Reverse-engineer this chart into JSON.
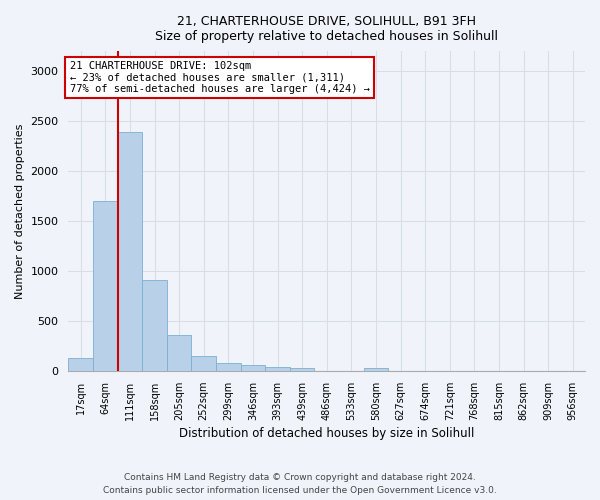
{
  "title1": "21, CHARTERHOUSE DRIVE, SOLIHULL, B91 3FH",
  "title2": "Size of property relative to detached houses in Solihull",
  "xlabel": "Distribution of detached houses by size in Solihull",
  "ylabel": "Number of detached properties",
  "categories": [
    "17sqm",
    "64sqm",
    "111sqm",
    "158sqm",
    "205sqm",
    "252sqm",
    "299sqm",
    "346sqm",
    "393sqm",
    "439sqm",
    "486sqm",
    "533sqm",
    "580sqm",
    "627sqm",
    "674sqm",
    "721sqm",
    "768sqm",
    "815sqm",
    "862sqm",
    "909sqm",
    "956sqm"
  ],
  "values": [
    130,
    1700,
    2390,
    910,
    360,
    145,
    80,
    55,
    40,
    30,
    0,
    0,
    30,
    0,
    0,
    0,
    0,
    0,
    0,
    0,
    0
  ],
  "bar_color": "#b8d0e8",
  "bar_edgecolor": "#7bafd4",
  "vline_position": 1.5,
  "vline_color": "#cc0000",
  "annotation_text": "21 CHARTERHOUSE DRIVE: 102sqm\n← 23% of detached houses are smaller (1,311)\n77% of semi-detached houses are larger (4,424) →",
  "annotation_box_facecolor": "#ffffff",
  "annotation_box_edgecolor": "#cc0000",
  "ylim": [
    0,
    3200
  ],
  "yticks": [
    0,
    500,
    1000,
    1500,
    2000,
    2500,
    3000
  ],
  "footer1": "Contains HM Land Registry data © Crown copyright and database right 2024.",
  "footer2": "Contains public sector information licensed under the Open Government Licence v3.0.",
  "fig_facecolor": "#f0f4fa",
  "ax_facecolor": "#f0f4fa",
  "grid_color": "#d8dde8"
}
